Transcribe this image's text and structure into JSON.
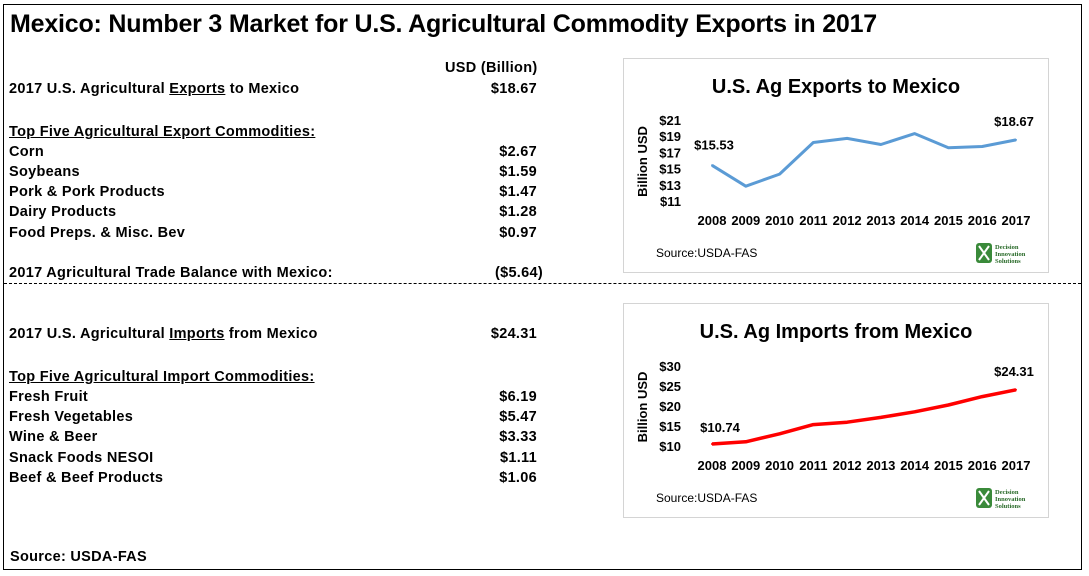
{
  "title": "Mexico: Number 3 Market for U.S. Agricultural Commodity Exports in 2017",
  "column_header": "USD (Billion)",
  "exports": {
    "total_label_pre": "2017 U.S. Agricultural ",
    "total_label_key": "Exports",
    "total_label_post": " to Mexico",
    "total_value": "$18.67",
    "top_heading": "Top Five Agricultural Export Commodities:",
    "items": [
      {
        "name": "Corn",
        "value": "$2.67"
      },
      {
        "name": "Soybeans",
        "value": "$1.59"
      },
      {
        "name": "Pork & Pork Products",
        "value": "$1.47"
      },
      {
        "name": "Dairy Products",
        "value": "$1.28"
      },
      {
        "name": "Food Preps. & Misc. Bev",
        "value": "$0.97"
      }
    ],
    "balance_label": "2017 Agricultural Trade Balance with Mexico:",
    "balance_value": "($5.64)"
  },
  "imports": {
    "total_label_pre": "2017 U.S. Agricultural ",
    "total_label_key": "Imports",
    "total_label_post": " from Mexico",
    "total_value": "$24.31",
    "top_heading": "Top Five Agricultural Import Commodities:",
    "items": [
      {
        "name": "Fresh Fruit",
        "value": "$6.19"
      },
      {
        "name": "Fresh Vegetables",
        "value": "$5.47"
      },
      {
        "name": "Wine & Beer",
        "value": "$3.33"
      },
      {
        "name": "Snack Foods NESOI",
        "value": "$1.11"
      },
      {
        "name": "Beef & Beef Products",
        "value": "$1.06"
      }
    ]
  },
  "source_footer": "Source: USDA-FAS",
  "logo": {
    "line1": "Decision",
    "line2": "Innovation",
    "line3": "Solutions"
  },
  "chart_data": [
    {
      "type": "line",
      "title": "U.S. Ag Exports to Mexico",
      "ylabel": "Billion  USD",
      "xlabel": "",
      "x": [
        "2008",
        "2009",
        "2010",
        "2011",
        "2012",
        "2013",
        "2014",
        "2015",
        "2016",
        "2017"
      ],
      "series": [
        {
          "values": [
            15.53,
            12.95,
            14.45,
            18.35,
            18.85,
            18.1,
            19.45,
            17.7,
            17.85,
            18.67
          ]
        }
      ],
      "ylim": [
        11,
        21
      ],
      "yticks": [
        "$11",
        "$13",
        "$15",
        "$17",
        "$19",
        "$21"
      ],
      "labels": {
        "first": "$15.53",
        "last": "$18.67"
      },
      "source": "Source:USDA-FAS",
      "color": "#5b9bd5",
      "grid": false,
      "legend": "none"
    },
    {
      "type": "line",
      "title": "U.S. Ag Imports from Mexico",
      "ylabel": "Billion  USD",
      "xlabel": "",
      "x": [
        "2008",
        "2009",
        "2010",
        "2011",
        "2012",
        "2013",
        "2014",
        "2015",
        "2016",
        "2017"
      ],
      "series": [
        {
          "values": [
            10.74,
            11.3,
            13.3,
            15.6,
            16.2,
            17.4,
            18.8,
            20.5,
            22.6,
            24.31
          ]
        }
      ],
      "ylim": [
        10,
        30
      ],
      "yticks": [
        "$10",
        "$15",
        "$20",
        "$25",
        "$30"
      ],
      "labels": {
        "first": "$10.74",
        "last": "$24.31"
      },
      "source": "Source:USDA-FAS",
      "color": "#ff0000",
      "grid": false,
      "legend": "none"
    }
  ]
}
